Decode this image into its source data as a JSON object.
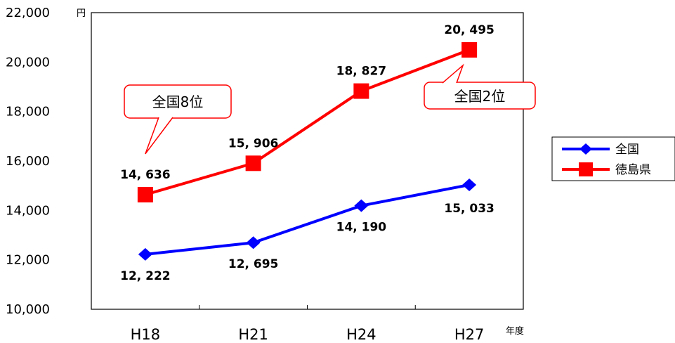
{
  "chart_data": {
    "type": "line",
    "categories": [
      "H18",
      "H21",
      "H24",
      "H27"
    ],
    "series": [
      {
        "name": "全国",
        "values": [
          12222,
          12695,
          14190,
          15033
        ],
        "labels": [
          "12, 222",
          "12, 695",
          "14, 190",
          "15, 033"
        ],
        "color": "#0000ff",
        "marker": "diamond"
      },
      {
        "name": "徳島県",
        "values": [
          14636,
          15906,
          18827,
          20495
        ],
        "labels": [
          "14, 636",
          "15, 906",
          "18, 827",
          "20, 495"
        ],
        "color": "#ff0000",
        "marker": "square"
      }
    ],
    "ylim": [
      10000,
      22000
    ],
    "yticks": [
      10000,
      12000,
      14000,
      16000,
      18000,
      20000,
      22000
    ],
    "ytick_labels": [
      "10,000",
      "12,000",
      "14,000",
      "16,000",
      "18,000",
      "20,000",
      "22,000"
    ],
    "yunit": "円",
    "xunit": "年度",
    "legend_position": "right",
    "grid": false,
    "annotations": [
      {
        "text": "全国8位",
        "series": 1,
        "point": 0
      },
      {
        "text": "全国2位",
        "series": 1,
        "point": 3
      }
    ]
  }
}
